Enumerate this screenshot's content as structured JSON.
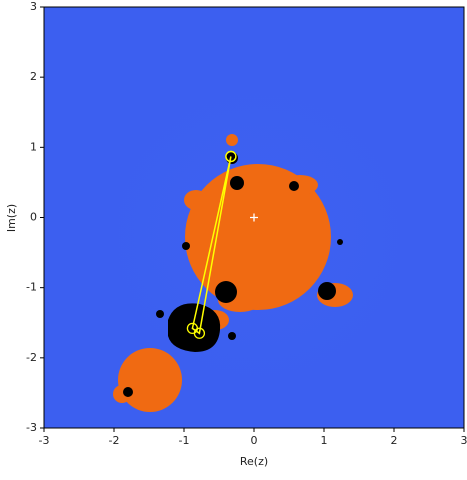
{
  "chart_data": {
    "type": "line",
    "x_label": "Re(z)",
    "y_label": "Im(z)",
    "xlim": [
      -3,
      3
    ],
    "ylim": [
      -3,
      3
    ],
    "xticks": [
      -3,
      -2,
      -1,
      0,
      1,
      2,
      3
    ],
    "yticks": [
      -3,
      -2,
      -1,
      0,
      1,
      2,
      3
    ],
    "background": "#3c5ff0",
    "series": [
      {
        "color": "#ffff00",
        "x": [
          -0.33,
          -0.88,
          -0.78,
          -0.33
        ],
        "values": [
          0.87,
          -1.58,
          -1.65,
          0.87
        ]
      },
      {
        "color": "#ffffff",
        "x": [
          0
        ],
        "values": [
          0
        ]
      }
    ]
  }
}
